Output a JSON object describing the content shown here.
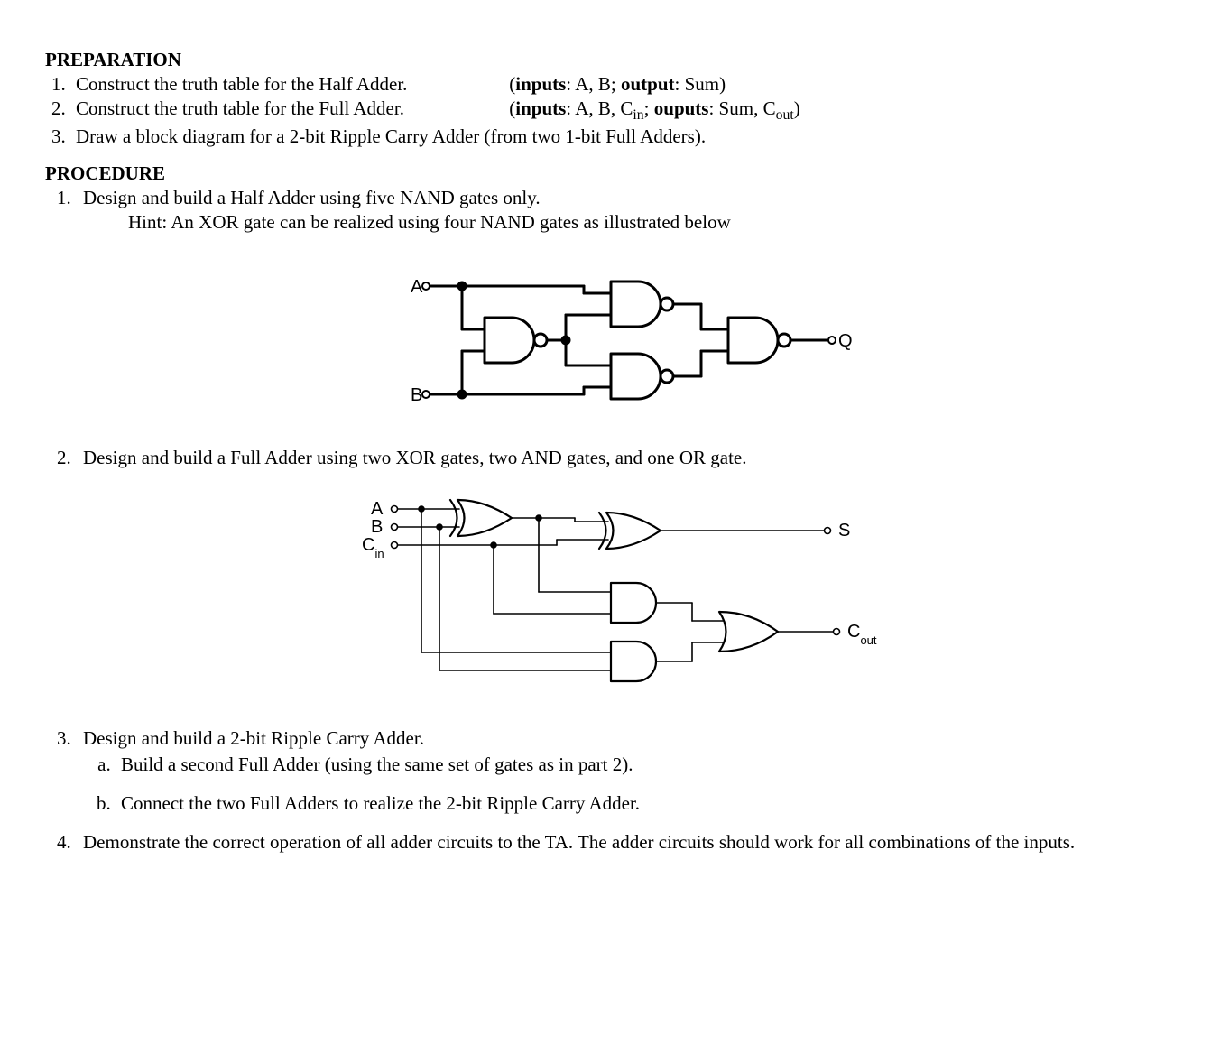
{
  "preparation": {
    "heading": "PREPARATION",
    "items": [
      {
        "text": "Construct the truth table for the Half Adder.",
        "aside_html": "(<b>inputs</b>: A, B; <b>output</b>: Sum)"
      },
      {
        "text": "Construct the truth table for the Full Adder.",
        "aside_html": "(<b>inputs</b>: A, B, C<sub>in</sub>; <b>ouputs</b>: Sum, C<sub>out</sub>)"
      },
      {
        "text": "Draw a block diagram for a 2-bit Ripple Carry Adder (from two 1-bit Full Adders)."
      }
    ]
  },
  "procedure": {
    "heading": "PROCEDURE",
    "items": [
      {
        "text": "Design and build a Half Adder using five NAND gates only.",
        "hint": "Hint:   An XOR gate can be realized using four NAND gates as illustrated below"
      },
      {
        "text": "Design and build a Full Adder using two XOR gates, two AND gates, and one OR gate."
      },
      {
        "text": "Design and build a 2-bit Ripple Carry Adder.",
        "subitems": [
          "Build a second Full Adder (using the same set of gates as in part 2).",
          "Connect the two Full Adders to realize the 2-bit Ripple Carry Adder."
        ]
      },
      {
        "text": "Demonstrate the correct operation of all adder circuits to the TA.  The adder circuits should work for all combinations of the inputs."
      }
    ]
  },
  "diagram1": {
    "type": "logic-circuit",
    "description": "XOR built from 4 NAND gates",
    "inputs": [
      "A",
      "B"
    ],
    "outputs": [
      "Q"
    ],
    "stroke": "#000000",
    "stroke_width": 3,
    "terminal_radius": 4
  },
  "diagram2": {
    "type": "logic-circuit",
    "description": "Full Adder from 2 XOR, 2 AND, 1 OR",
    "inputs": [
      "A",
      "B",
      "Cin"
    ],
    "outputs": [
      "S",
      "Cout"
    ],
    "stroke": "#000000",
    "stroke_width_gate": 2.2,
    "stroke_width_wire": 1.6,
    "terminal_radius": 3.5
  }
}
